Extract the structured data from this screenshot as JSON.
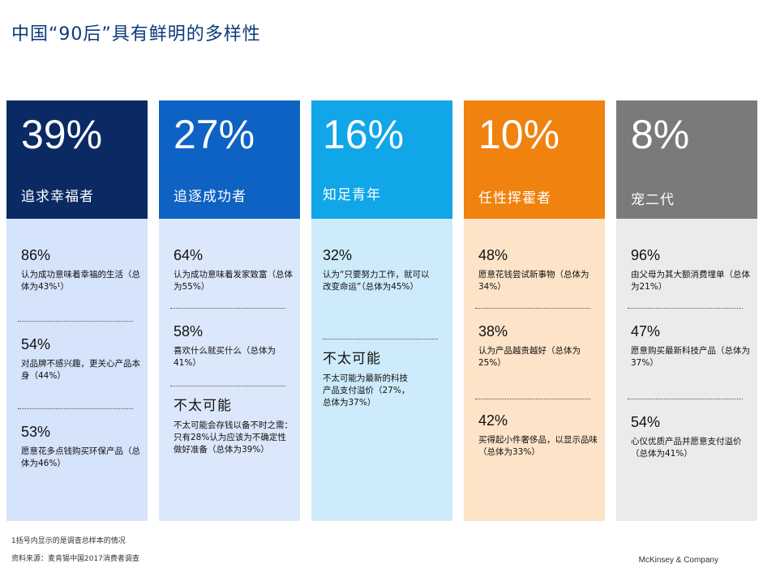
{
  "title": "中国“90后”具有鲜明的多样性",
  "colors": {
    "title": "#0a3a7a",
    "heads": [
      "#0b2a64",
      "#0e62c4",
      "#10a6e8",
      "#f0820f",
      "#7a7a7a"
    ],
    "bodies": [
      "#d5e3fb",
      "#dbe7fa",
      "#cdebfa",
      "#fde3c8",
      "#ebebeb"
    ]
  },
  "segments": [
    {
      "pct": "39%",
      "name": "追求幸福者",
      "stats": [
        {
          "value": "86%",
          "desc": "认为成功意味着幸福的生活（总体为43%¹）"
        },
        {
          "value": "54%",
          "desc": "对品牌不感兴趣，更关心产品本身（44%）"
        },
        {
          "value": "53%",
          "desc": "愿意花多点钱购买环保产品（总体为46%）"
        }
      ]
    },
    {
      "pct": "27%",
      "name": "追逐成功者",
      "stats": [
        {
          "value": "64%",
          "desc": "认为成功意味着发家致富（总体为55%）"
        },
        {
          "value": "58%",
          "desc": "喜欢什么就买什么（总体为41%）"
        },
        {
          "value": "不太可能",
          "desc": "不太可能会存钱以备不时之需：只有28%认为应该为不确定性做好准备（总体为39%）"
        }
      ]
    },
    {
      "pct": "16%",
      "name": "知足青年",
      "stats": [
        {
          "value": "32%",
          "desc": "认为“只要努力工作，就可以改变命运”（总体为45%）"
        },
        {
          "value": "不太可能",
          "desc": "不太可能为最新的科技产品支付溢价（27%，总体为37%）"
        }
      ]
    },
    {
      "pct": "10%",
      "name": "任性挥霍者",
      "stats": [
        {
          "value": "48%",
          "desc": "愿意花钱尝试新事物（总体为34%）"
        },
        {
          "value": "38%",
          "desc": "认为产品越贵越好（总体为25%）"
        },
        {
          "value": "42%",
          "desc": "买得起小件奢侈品，以显示品味（总体为33%）"
        }
      ]
    },
    {
      "pct": "8%",
      "name": "宠二代",
      "stats": [
        {
          "value": "96%",
          "desc": "由父母为其大额消费埋单（总体为21%）"
        },
        {
          "value": "47%",
          "desc": "愿意购买最新科技产品（总体为37%）"
        },
        {
          "value": "54%",
          "desc": "心仪优质产品并愿意支付溢价（总体为41%）"
        }
      ]
    }
  ],
  "footnote1": "1括号内显示的是调查总样本的情况",
  "footnote2": "资料来源：麦肯锡中国2017消费者调查",
  "brand": "McKinsey & Company"
}
